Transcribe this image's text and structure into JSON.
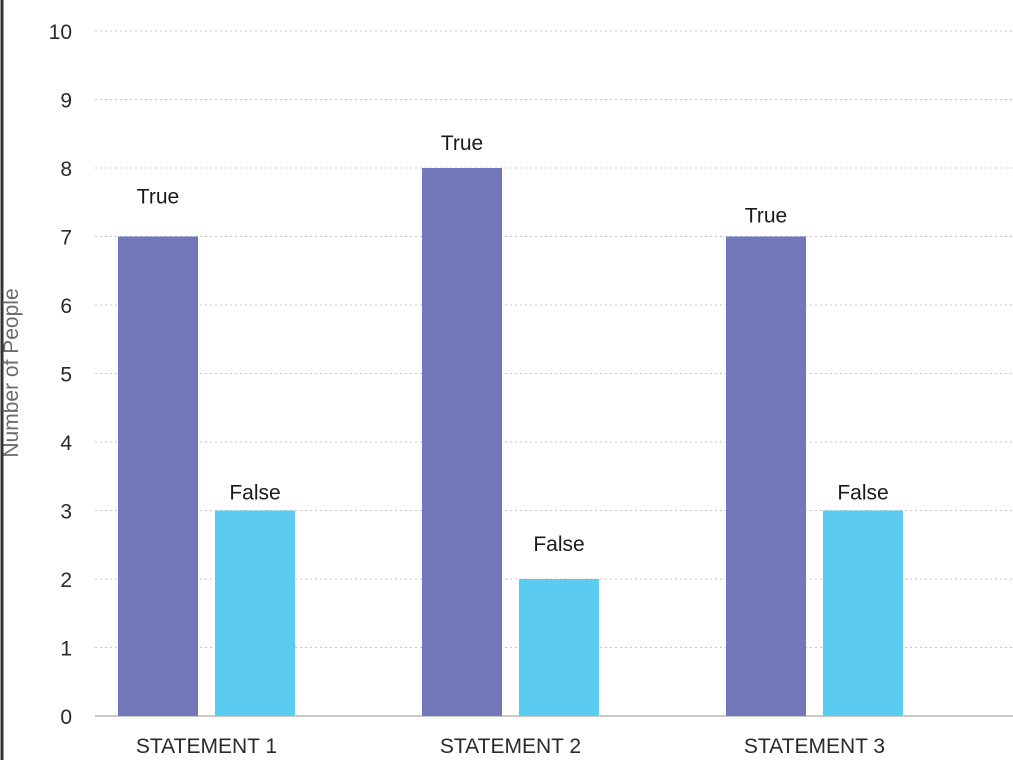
{
  "chart_data": {
    "type": "bar",
    "title": "",
    "xlabel": "",
    "ylabel": "Number of People",
    "ylim": [
      0,
      10
    ],
    "yticks": [
      "0",
      "1",
      "2",
      "3",
      "4",
      "5",
      "6",
      "7",
      "8",
      "9",
      "10"
    ],
    "grid": true,
    "legend": "none",
    "categories": [
      "STATEMENT 1",
      "STATEMENT 2",
      "STATEMENT 3"
    ],
    "series": [
      {
        "name": "True",
        "color": "#7078b9",
        "values": [
          7,
          8,
          7
        ],
        "bar_labels": [
          "True",
          "True",
          "True"
        ]
      },
      {
        "name": "False",
        "color": "#5bcbf2",
        "values": [
          3,
          2,
          3
        ],
        "bar_labels": [
          "False",
          "False",
          "False"
        ]
      }
    ]
  }
}
